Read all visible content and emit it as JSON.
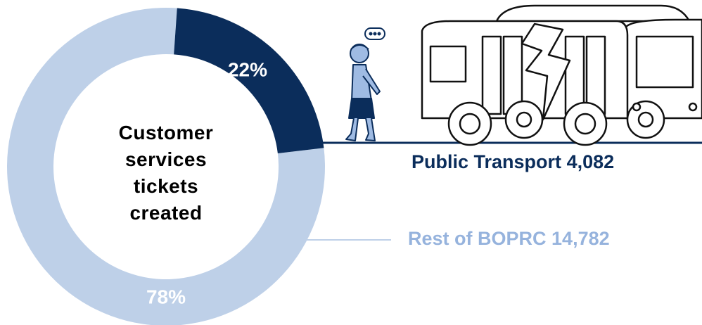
{
  "chart_data": {
    "type": "donut",
    "center_label": "Customer services tickets created",
    "categories": [
      "Public Transport",
      "Rest of BOPRC"
    ],
    "values": [
      22,
      78
    ],
    "value_labels": [
      "22%",
      "78%"
    ],
    "counts": [
      4082,
      14782
    ],
    "count_labels": [
      "4,082",
      "14,782"
    ],
    "colors": [
      "#0b2d5b",
      "#bed0e8"
    ],
    "label_colors": [
      "#0b2d5b",
      "#96b3dd"
    ]
  }
}
